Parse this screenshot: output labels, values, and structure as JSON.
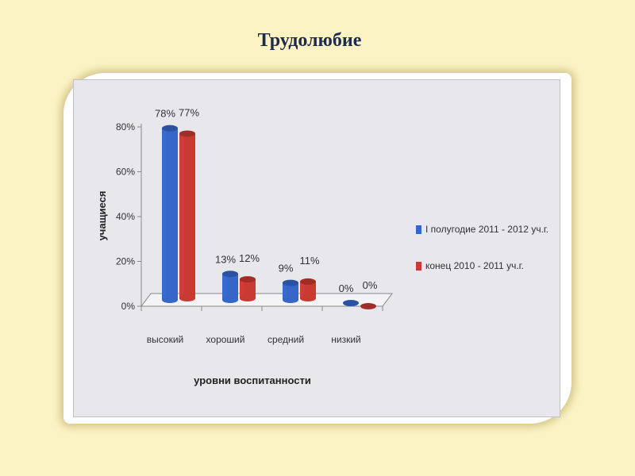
{
  "slide": {
    "title": "Трудолюбие"
  },
  "chart_data": {
    "type": "bar",
    "categories": [
      "высокий",
      "хороший",
      "средний",
      "низкий"
    ],
    "series": [
      {
        "name": "I полугодие 2011 - 2012 уч.г.",
        "color": "#3566c8",
        "values": [
          78,
          13,
          9,
          0
        ],
        "labels": [
          "78%",
          "13%",
          "9%",
          "0%"
        ]
      },
      {
        "name": "конец 2010 - 2011 уч.г.",
        "color": "#c83a32",
        "values": [
          77,
          12,
          11,
          0
        ],
        "labels": [
          "77%",
          "12%",
          "11%",
          "0%"
        ]
      }
    ],
    "xlabel": "уровни воспитанности",
    "ylabel": "учащиеся",
    "ylim": [
      0,
      80
    ],
    "yticks": [
      "0%",
      "20%",
      "40%",
      "60%",
      "80%"
    ],
    "legend_position": "right",
    "style": "3d-cylinder"
  }
}
